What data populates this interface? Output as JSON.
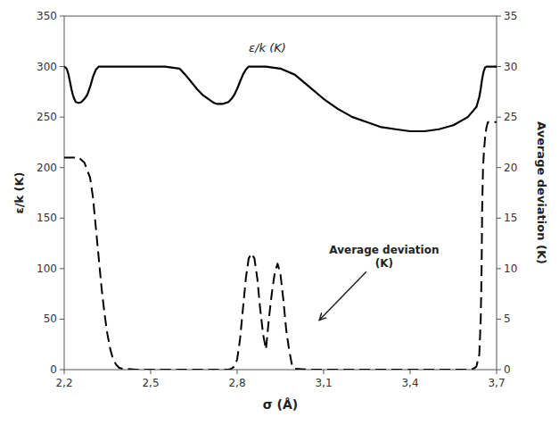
{
  "chart_data": {
    "type": "line",
    "xlabel": "σ (Å)",
    "ylabel": "ε/k (K)",
    "y2label": "Average deviation (K)",
    "xlim": [
      2.2,
      3.7
    ],
    "ylim": [
      0,
      350
    ],
    "y2lim": [
      0,
      35
    ],
    "xticks": [
      {
        "value": 2.2,
        "label": "2,2"
      },
      {
        "value": 2.5,
        "label": "2,5"
      },
      {
        "value": 2.8,
        "label": "2,8"
      },
      {
        "value": 3.1,
        "label": "3,1"
      },
      {
        "value": 3.4,
        "label": "3,4"
      },
      {
        "value": 3.7,
        "label": "3,7"
      }
    ],
    "yticks": [
      0,
      50,
      100,
      150,
      200,
      250,
      300,
      350
    ],
    "y2ticks": [
      0,
      5,
      10,
      15,
      20,
      25,
      30,
      35
    ],
    "grid": false,
    "annotations": [
      {
        "text": "ε/k (K)"
      },
      {
        "text": "Average deviation\n(K)"
      }
    ],
    "series": [
      {
        "color": "black",
        "line_style": "solid",
        "x": [
          2.2,
          2.205,
          2.21,
          2.215,
          2.22,
          2.225,
          2.23,
          2.235,
          2.24,
          2.25,
          2.26,
          2.27,
          2.28,
          2.29,
          2.3,
          2.31,
          2.32,
          2.33,
          2.34,
          2.35,
          2.36,
          2.37,
          2.38,
          2.4,
          2.45,
          2.5,
          2.55,
          2.6,
          2.62,
          2.64,
          2.66,
          2.68,
          2.7,
          2.72,
          2.73,
          2.74,
          2.75,
          2.76,
          2.77,
          2.78,
          2.79,
          2.8,
          2.81,
          2.82,
          2.83,
          2.84,
          2.85,
          2.86,
          2.87,
          2.88,
          2.89,
          2.9,
          2.95,
          3.0,
          3.05,
          3.1,
          3.15,
          3.2,
          3.25,
          3.3,
          3.35,
          3.4,
          3.45,
          3.5,
          3.55,
          3.6,
          3.63,
          3.64,
          3.645,
          3.65,
          3.655,
          3.66,
          3.665,
          3.67,
          3.68,
          3.7
        ],
        "values": [
          300,
          299,
          297,
          292,
          285,
          278,
          272,
          268,
          265,
          264,
          265,
          268,
          272,
          280,
          290,
          297,
          300,
          300,
          300,
          300,
          300,
          300,
          300,
          300,
          300,
          300,
          300,
          298,
          292,
          285,
          278,
          272,
          268,
          264,
          263,
          263,
          263,
          264,
          265,
          268,
          272,
          278,
          285,
          292,
          297,
          300,
          300,
          300,
          300,
          300,
          300,
          300,
          298,
          292,
          280,
          268,
          258,
          250,
          245,
          240,
          238,
          236,
          236,
          238,
          242,
          250,
          260,
          270,
          278,
          288,
          295,
          299,
          300,
          300,
          300,
          300
        ]
      },
      {
        "color": "black",
        "line_style": "dashed",
        "axis": "y2",
        "x": [
          2.2,
          2.205,
          2.21,
          2.215,
          2.22,
          2.225,
          2.23,
          2.25,
          2.27,
          2.29,
          2.3,
          2.31,
          2.32,
          2.33,
          2.34,
          2.35,
          2.36,
          2.37,
          2.38,
          2.39,
          2.4,
          2.45,
          2.5,
          2.55,
          2.6,
          2.65,
          2.7,
          2.75,
          2.77,
          2.78,
          2.79,
          2.8,
          2.81,
          2.82,
          2.83,
          2.84,
          2.85,
          2.86,
          2.87,
          2.88,
          2.89,
          2.9,
          2.91,
          2.92,
          2.93,
          2.94,
          2.95,
          2.96,
          2.97,
          2.98,
          2.99,
          3.0,
          3.05,
          3.1,
          3.15,
          3.2,
          3.3,
          3.4,
          3.5,
          3.6,
          3.62,
          3.63,
          3.64,
          3.645,
          3.648,
          3.65,
          3.653,
          3.656,
          3.66,
          3.665,
          3.67,
          3.68,
          3.69,
          3.7
        ],
        "values": [
          21.0,
          21.0,
          21.0,
          21.0,
          21.0,
          21.0,
          21.0,
          21.0,
          20.5,
          19.0,
          17.0,
          14.0,
          11.0,
          8.0,
          5.5,
          3.5,
          2.0,
          1.0,
          0.5,
          0.2,
          0.1,
          0.0,
          0.0,
          0.0,
          0.0,
          0.0,
          0.0,
          0.0,
          0.0,
          0.1,
          0.3,
          1.0,
          3.0,
          6.0,
          9.0,
          11.0,
          11.5,
          11.0,
          9.0,
          6.0,
          3.5,
          2.0,
          5.0,
          7.5,
          9.5,
          10.5,
          9.5,
          7.0,
          4.0,
          2.0,
          0.5,
          0.1,
          0.0,
          0.0,
          0.0,
          0.0,
          0.0,
          0.0,
          0.0,
          0.0,
          0.1,
          0.3,
          1.5,
          5.0,
          10.0,
          16.0,
          20.0,
          21.5,
          23.0,
          24.0,
          24.5,
          24.5,
          24.5,
          24.5
        ]
      }
    ]
  }
}
